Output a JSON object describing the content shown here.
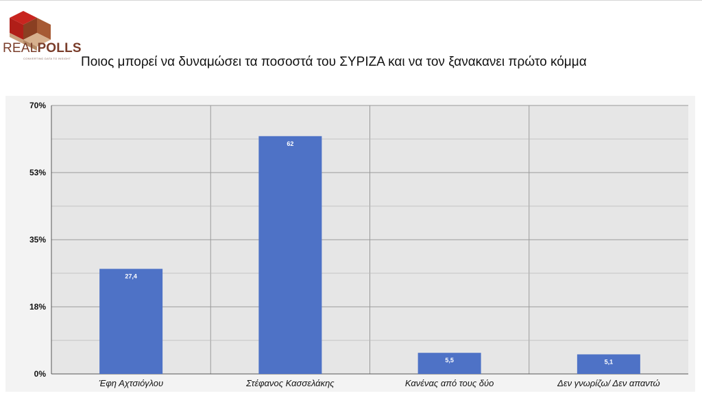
{
  "brand": {
    "name_part1": "REAL",
    "name_part2": "POLLS",
    "tagline": "CONVERTING DATA TO INSIGHT"
  },
  "header": {
    "title": "Ποιος μπορεί να δυναμώσει τα ποσοστά του ΣΥΡΙΖΑ και να τον ξανακανει πρώτο κόμμα"
  },
  "colors": {
    "bar": "#4e72c6",
    "plot_bg": "#e6e6e6",
    "grid": "#9a9a9a"
  },
  "chart_data": {
    "type": "bar",
    "categories": [
      "Έφη Αχτσιόγλου",
      "Στέφανος Κασσελάκης",
      "Κανένας από τους δύο",
      "Δεν γνωρίζω/  Δεν απαντώ"
    ],
    "values": [
      27.4,
      62,
      5.5,
      5.1
    ],
    "data_labels": [
      "27,4",
      "62",
      "5,5",
      "5,1"
    ],
    "ylim": [
      0,
      70
    ],
    "yticks": [
      0,
      17.5,
      35,
      52.5,
      70
    ],
    "ytick_labels": [
      "0%",
      "18%",
      "35%",
      "53%",
      "70%"
    ],
    "grid": true,
    "title": "",
    "xlabel": "",
    "ylabel": ""
  }
}
